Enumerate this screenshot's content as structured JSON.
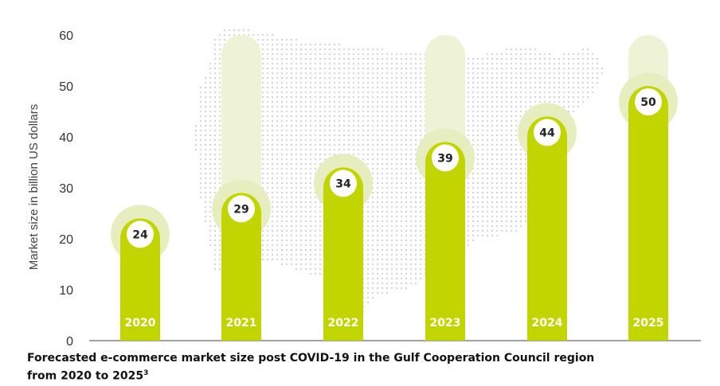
{
  "chart_data": {
    "type": "bar",
    "categories": [
      "2020",
      "2021",
      "2022",
      "2023",
      "2024",
      "2025"
    ],
    "values": [
      24,
      29,
      34,
      39,
      44,
      50
    ],
    "ylabel": "Market size in billion US dollars",
    "ylim": [
      0,
      60
    ],
    "yticks": [
      0,
      10,
      20,
      30,
      40,
      50,
      60
    ],
    "grid": false,
    "bar_color": "#c3d500",
    "halo_color": "#e6eec0",
    "ghost_bar_color": "#eef3d6",
    "background_map": "usa-dot-map",
    "ghost_bars": [
      {
        "category": "2021",
        "value": 60
      },
      {
        "category": "2023",
        "value": 60
      },
      {
        "category": "2025",
        "value": 60
      }
    ]
  },
  "caption": {
    "line1": "Forecasted e-commerce market size post COVID-19 in the Gulf Cooperation Council region",
    "line2": "from 2020 to 2025",
    "footnote": "3"
  }
}
